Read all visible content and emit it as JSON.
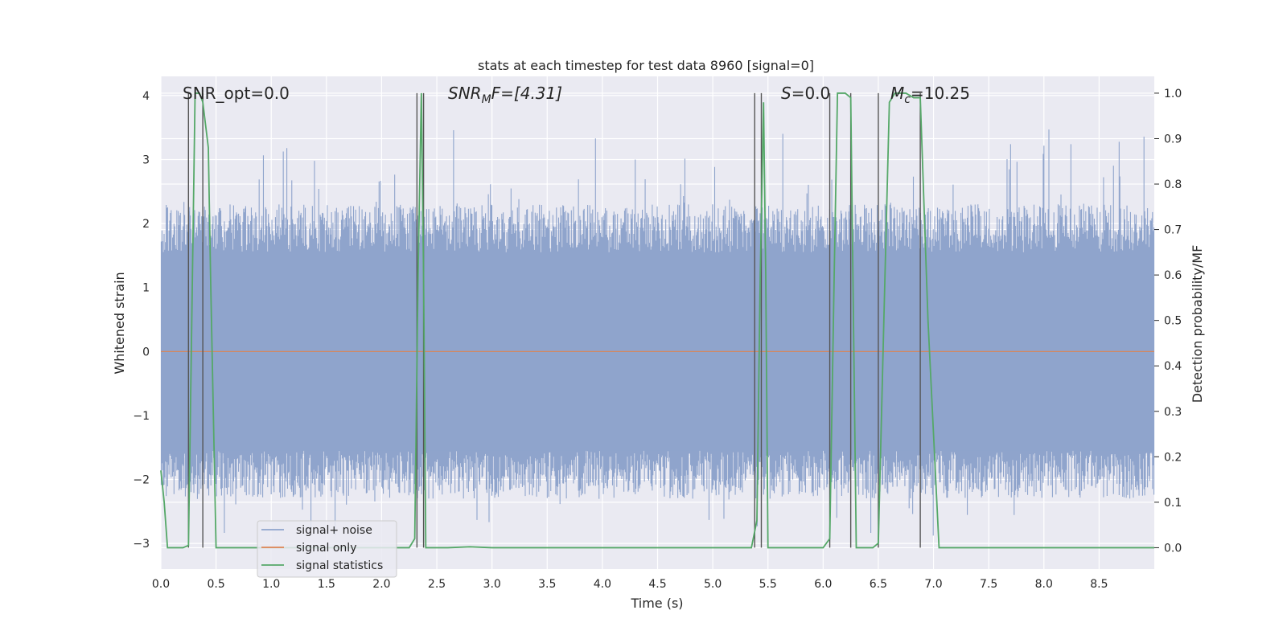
{
  "chart_data": {
    "type": "line",
    "title": "stats at each timestep for test data 8960 [signal=0]",
    "xlabel": "Time (s)",
    "ylabel": "Whitened strain",
    "ylabel_right": "Detection probability/MF",
    "xlim": [
      0,
      9.0
    ],
    "ylim": [
      -3.4,
      4.3
    ],
    "ylim_right": [
      -0.047,
      1.037
    ],
    "x_ticks": [
      0.0,
      0.5,
      1.0,
      1.5,
      2.0,
      2.5,
      3.0,
      3.5,
      4.0,
      4.5,
      5.0,
      5.5,
      6.0,
      6.5,
      7.0,
      7.5,
      8.0,
      8.5
    ],
    "x_tick_labels": [
      "0.0",
      "0.5",
      "1.0",
      "1.5",
      "2.0",
      "2.5",
      "3.0",
      "3.5",
      "4.0",
      "4.5",
      "5.0",
      "5.5",
      "6.0",
      "6.5",
      "7.0",
      "7.5",
      "8.0",
      "8.5"
    ],
    "y_ticks": [
      -3,
      -2,
      -1,
      0,
      1,
      2,
      3,
      4
    ],
    "y_tick_labels": [
      "−3",
      "−2",
      "−1",
      "0",
      "1",
      "2",
      "3",
      "4"
    ],
    "y_right_ticks": [
      0.0,
      0.1,
      0.2,
      0.3,
      0.4,
      0.5,
      0.6,
      0.7,
      0.8,
      0.9,
      1.0
    ],
    "y_right_tick_labels": [
      "0.0",
      "0.1",
      "0.2",
      "0.3",
      "0.4",
      "0.5",
      "0.6",
      "0.7",
      "0.8",
      "0.9",
      "1.0"
    ],
    "annotations": {
      "snr_opt": "SNR_opt=0.0",
      "snr_mf_main": "SNR",
      "snr_mf_sub": "M",
      "snr_mf_rest": "F=[4.31]",
      "s_var": "S",
      "s_rest": "=0.0",
      "mc_var": "M",
      "mc_sub": "c",
      "mc_rest": "=10.25"
    },
    "noise_series": {
      "name": "signal+ noise",
      "color": "#8fa4cc",
      "n_samples": 1400,
      "core_band": [
        -1.55,
        1.55
      ],
      "typical_peak": 2.3,
      "max_peak": 3.6,
      "min_trough": -3.0
    },
    "signal_series": {
      "name": "signal only",
      "color": "#dd8452",
      "value": 0.0
    },
    "stat_series": {
      "name": "signal statistics",
      "color": "#55a868",
      "x": [
        0.0,
        0.03,
        0.06,
        0.1,
        0.15,
        0.2,
        0.25,
        0.28,
        0.31,
        0.35,
        0.38,
        0.43,
        0.45,
        0.5,
        0.6,
        1.0,
        1.5,
        2.0,
        2.25,
        2.3,
        2.33,
        2.36,
        2.38,
        2.4,
        2.43,
        2.6,
        2.8,
        3.0,
        4.0,
        5.0,
        5.35,
        5.4,
        5.43,
        5.46,
        5.48,
        5.5,
        5.55,
        5.65,
        5.8,
        6.0,
        6.06,
        6.1,
        6.13,
        6.2,
        6.25,
        6.3,
        6.38,
        6.45,
        6.5,
        6.55,
        6.6,
        6.65,
        6.75,
        6.82,
        6.88,
        6.95,
        7.05,
        7.5,
        8.0,
        8.5,
        9.0
      ],
      "y": [
        0.17,
        0.1,
        0.0,
        0.0,
        0.0,
        0.0,
        0.005,
        0.5,
        1.0,
        1.0,
        0.98,
        0.88,
        0.6,
        0.0,
        0.0,
        0.0,
        0.0,
        0.0,
        0.0,
        0.02,
        0.6,
        1.0,
        0.6,
        0.0,
        0.0,
        0.0,
        0.002,
        0.0,
        0.0,
        0.0,
        0.0,
        0.06,
        0.6,
        0.98,
        0.6,
        0.0,
        0.0,
        0.0,
        0.0,
        0.0,
        0.02,
        0.6,
        1.0,
        1.0,
        0.99,
        0.0,
        0.0,
        0.0,
        0.01,
        0.5,
        0.98,
        1.0,
        1.0,
        0.99,
        0.99,
        0.5,
        0.0,
        0.0,
        0.0,
        0.0,
        0.0
      ]
    },
    "vertical_markers": [
      0.25,
      0.38,
      2.32,
      2.38,
      5.38,
      5.44,
      6.06,
      6.25,
      6.5,
      6.88
    ],
    "legend": [
      "signal+ noise",
      "signal only",
      "signal statistics"
    ],
    "legend_position": "lower-left",
    "grid": true,
    "colors": {
      "plot_background": "#eaeaf2",
      "grid": "#ffffff",
      "marker": "#555555"
    }
  }
}
